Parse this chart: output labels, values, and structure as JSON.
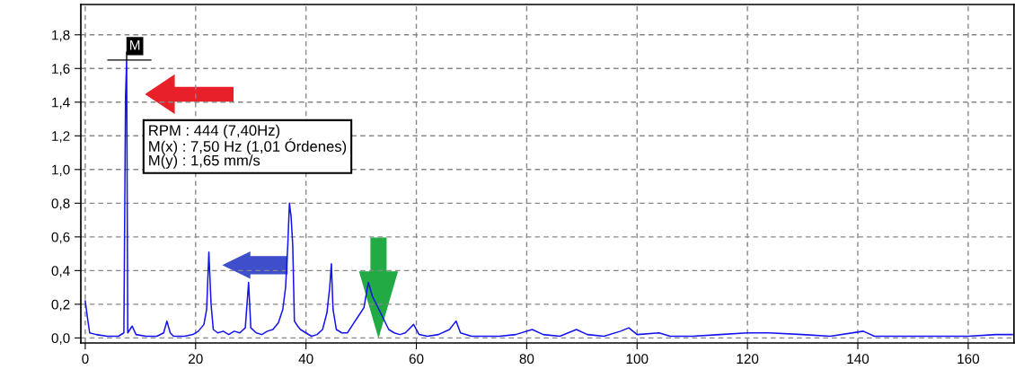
{
  "chart_data": {
    "type": "line",
    "x": [
      0,
      0.4,
      0.8,
      2,
      4,
      6,
      7.0,
      7.3,
      7.5,
      7.7,
      8.5,
      9.2,
      11,
      13,
      14.2,
      14.8,
      15.4,
      16,
      18,
      19.5,
      20.5,
      21.5,
      22.0,
      22.4,
      22.8,
      23.2,
      24,
      25,
      26,
      27,
      28,
      29.0,
      29.6,
      30.0,
      31,
      32,
      33,
      34,
      35,
      35.8,
      36.3,
      36.7,
      37.0,
      37.3,
      37.6,
      37.9,
      38.5,
      39,
      40,
      41,
      42,
      43,
      43.8,
      44.3,
      44.6,
      44.9,
      45.5,
      46.5,
      47.5,
      48.5,
      49.5,
      50.5,
      51.3,
      52,
      55,
      56,
      57,
      58,
      59.5,
      60.5,
      62,
      64,
      66,
      67.2,
      68,
      70,
      72,
      75,
      78,
      81,
      83,
      86,
      89,
      91,
      94,
      97,
      98.5,
      100,
      104,
      106,
      110,
      115,
      120,
      124,
      130,
      135,
      141,
      143,
      150,
      155,
      160,
      165,
      168
    ],
    "series": [
      {
        "color": "#1414f0",
        "values": [
          0.22,
          0.12,
          0.03,
          0.02,
          0.01,
          0.01,
          0.03,
          1.43,
          1.65,
          0.03,
          0.07,
          0.02,
          0.01,
          0.01,
          0.03,
          0.1,
          0.03,
          0.01,
          0.01,
          0.02,
          0.04,
          0.08,
          0.17,
          0.51,
          0.2,
          0.05,
          0.03,
          0.04,
          0.02,
          0.04,
          0.03,
          0.06,
          0.33,
          0.06,
          0.03,
          0.02,
          0.04,
          0.05,
          0.09,
          0.17,
          0.3,
          0.55,
          0.8,
          0.72,
          0.55,
          0.1,
          0.07,
          0.05,
          0.03,
          0.01,
          0.02,
          0.05,
          0.15,
          0.3,
          0.44,
          0.17,
          0.05,
          0.03,
          0.03,
          0.08,
          0.13,
          0.18,
          0.33,
          0.25,
          0.05,
          0.03,
          0.02,
          0.03,
          0.08,
          0.02,
          0.01,
          0.02,
          0.05,
          0.1,
          0.03,
          0.01,
          0.01,
          0.01,
          0.02,
          0.05,
          0.02,
          0.01,
          0.05,
          0.02,
          0.01,
          0.04,
          0.06,
          0.02,
          0.03,
          0.01,
          0.01,
          0.02,
          0.03,
          0.03,
          0.02,
          0.01,
          0.04,
          0.01,
          0.01,
          0.01,
          0.01,
          0.02,
          0.02
        ]
      }
    ],
    "xlim": [
      -0.8,
      168.3
    ],
    "ylim": [
      -0.03,
      1.98
    ],
    "xticks": [
      0,
      20,
      40,
      60,
      80,
      100,
      120,
      140,
      160
    ],
    "yticks": [
      {
        "value": 0,
        "label": "0,0"
      },
      {
        "value": 0.2,
        "label": "0,2"
      },
      {
        "value": 0.4,
        "label": "0,4"
      },
      {
        "value": 0.6,
        "label": "0,6"
      },
      {
        "value": 0.8,
        "label": "0,8"
      },
      {
        "value": 1.0,
        "label": "1,0"
      },
      {
        "value": 1.2,
        "label": "1,2"
      },
      {
        "value": 1.4,
        "label": "1,4"
      },
      {
        "value": 1.6,
        "label": "1,6"
      },
      {
        "value": 1.8,
        "label": "1,8"
      }
    ],
    "grid": true,
    "marker": "none",
    "line_style": "solid",
    "legend": false,
    "annotations": [
      {
        "text": "M",
        "x": 7.5,
        "y": 1.65
      },
      "RPM : 444 (7,40Hz)\nM(x) : 7,50 Hz (1,01 Órdenes)\nM(y) : 1,65 mm/s"
    ]
  }
}
